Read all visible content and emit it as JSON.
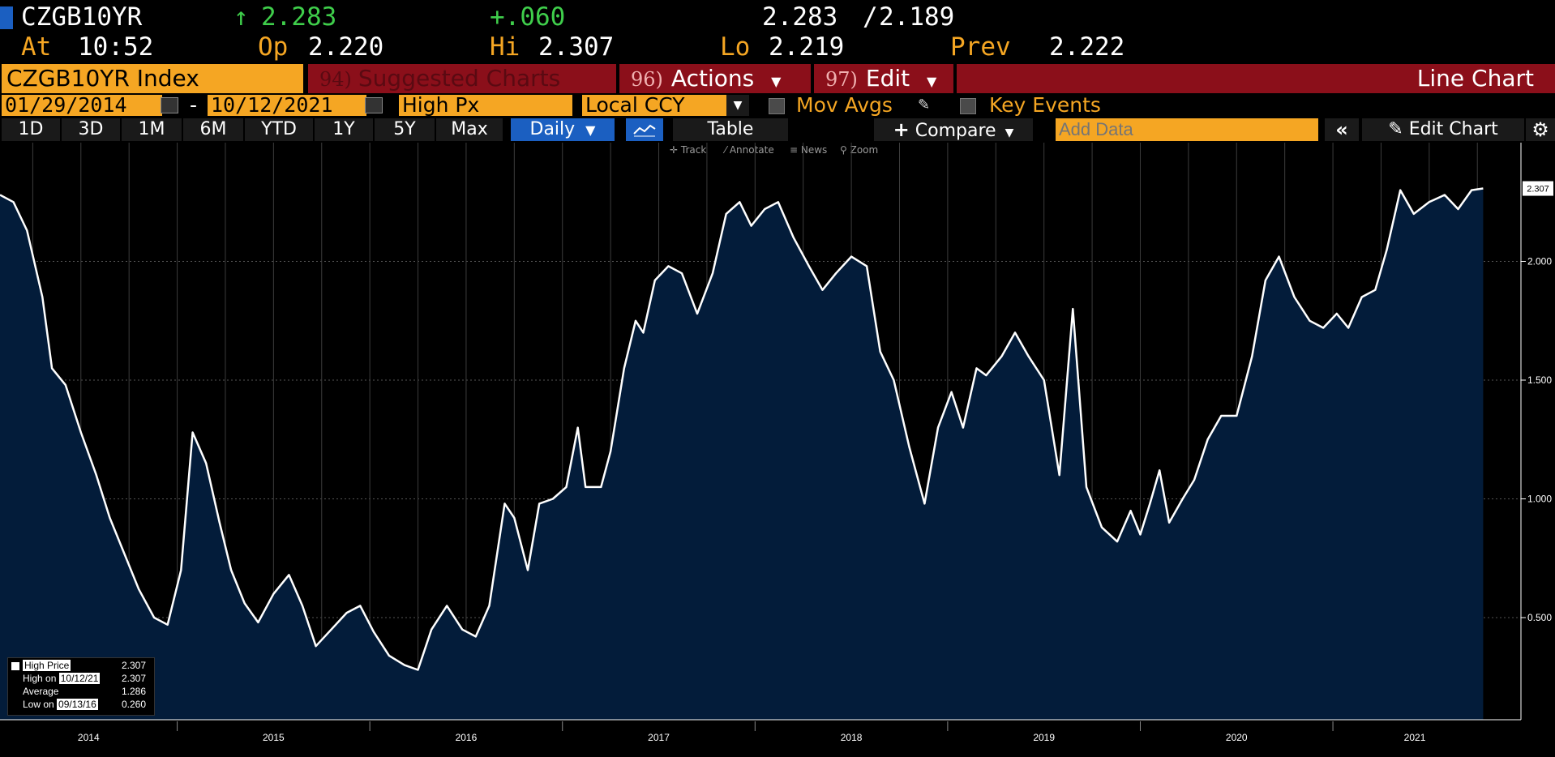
{
  "quote": {
    "ticker": "CZGB10YR",
    "arrow": "↑",
    "last": "2.283",
    "change": "+.060",
    "bid": "2.283",
    "slash": "/",
    "ask": "2.189",
    "at_label": "At",
    "time": "10:52",
    "op_label": "Op",
    "open": "2.220",
    "hi_label": "Hi",
    "high": "2.307",
    "lo_label": "Lo",
    "low": "2.219",
    "prev_label": "Prev",
    "prev": "2.222"
  },
  "toolbar": {
    "security": "CZGB10YR Index",
    "suggested_num": "94)",
    "suggested": "Suggested Charts",
    "actions_num": "96)",
    "actions": "Actions",
    "edit_num": "97)",
    "edit": "Edit",
    "chart_type": "Line Chart",
    "start_date": "01/29/2014",
    "date_sep": "-",
    "end_date": "10/12/2021",
    "field": "High Px",
    "currency": "Local CCY",
    "mov_avgs": "Mov Avgs",
    "key_events": "Key Events",
    "periods": [
      "1D",
      "3D",
      "1M",
      "6M",
      "YTD",
      "1Y",
      "5Y",
      "Max"
    ],
    "frequency": "Daily",
    "table": "Table",
    "compare": "Compare",
    "add_data_placeholder": "Add Data",
    "edit_chart": "Edit Chart",
    "tools": [
      "Track",
      "Annotate",
      "News",
      "Zoom"
    ]
  },
  "legend": {
    "high_price_label": "High Price",
    "high_price_value": "2.307",
    "high_on_label": "High on",
    "high_on_date": "10/12/21",
    "high_on_value": "2.307",
    "average_label": "Average",
    "average_value": "1.286",
    "low_on_label": "Low on",
    "low_on_date": "09/13/16",
    "low_on_value": "0.260"
  },
  "colors": {
    "accent_orange": "#f5a623",
    "up_green": "#3fce4b",
    "toolbar_red": "#8b0f1a",
    "area_fill": "#031c3a",
    "line": "#ffffff",
    "selected_blue": "#1b5fc1"
  },
  "chart_data": {
    "type": "area",
    "title": "",
    "xlabel": "",
    "ylabel": "",
    "series": [
      {
        "name": "High Price",
        "x": [
          2014.08,
          2014.15,
          2014.22,
          2014.3,
          2014.35,
          2014.42,
          2014.5,
          2014.58,
          2014.65,
          2014.72,
          2014.8,
          2014.88,
          2014.95,
          2015.02,
          2015.08,
          2015.15,
          2015.22,
          2015.28,
          2015.35,
          2015.42,
          2015.5,
          2015.58,
          2015.65,
          2015.72,
          2015.8,
          2015.88,
          2015.95,
          2016.02,
          2016.1,
          2016.18,
          2016.25,
          2016.32,
          2016.4,
          2016.48,
          2016.55,
          2016.62,
          2016.7,
          2016.75,
          2016.82,
          2016.88,
          2016.95,
          2017.02,
          2017.08,
          2017.12,
          2017.2,
          2017.25,
          2017.32,
          2017.38,
          2017.42,
          2017.48,
          2017.55,
          2017.62,
          2017.7,
          2017.78,
          2017.85,
          2017.92,
          2017.98,
          2018.05,
          2018.12,
          2018.2,
          2018.28,
          2018.35,
          2018.42,
          2018.5,
          2018.58,
          2018.65,
          2018.72,
          2018.8,
          2018.88,
          2018.95,
          2019.02,
          2019.08,
          2019.15,
          2019.2,
          2019.28,
          2019.35,
          2019.42,
          2019.5,
          2019.58,
          2019.65,
          2019.72,
          2019.8,
          2019.88,
          2019.95,
          2020.0,
          2020.05,
          2020.1,
          2020.15,
          2020.22,
          2020.28,
          2020.35,
          2020.42,
          2020.5,
          2020.58,
          2020.65,
          2020.72,
          2020.8,
          2020.88,
          2020.95,
          2021.02,
          2021.08,
          2021.15,
          2021.22,
          2021.28,
          2021.35,
          2021.42,
          2021.5,
          2021.58,
          2021.65,
          2021.72,
          2021.78
        ],
        "values": [
          2.28,
          2.25,
          2.13,
          1.85,
          1.55,
          1.48,
          1.28,
          1.1,
          0.92,
          0.78,
          0.62,
          0.5,
          0.47,
          0.7,
          1.28,
          1.15,
          0.9,
          0.7,
          0.56,
          0.48,
          0.6,
          0.68,
          0.55,
          0.38,
          0.45,
          0.52,
          0.55,
          0.44,
          0.34,
          0.3,
          0.28,
          0.45,
          0.55,
          0.45,
          0.42,
          0.55,
          0.98,
          0.92,
          0.7,
          0.98,
          1.0,
          1.05,
          1.3,
          1.05,
          1.05,
          1.2,
          1.55,
          1.75,
          1.7,
          1.92,
          1.98,
          1.95,
          1.78,
          1.95,
          2.2,
          2.25,
          2.15,
          2.22,
          2.25,
          2.1,
          1.98,
          1.88,
          1.95,
          2.02,
          1.98,
          1.62,
          1.5,
          1.22,
          0.98,
          1.3,
          1.45,
          1.3,
          1.55,
          1.52,
          1.6,
          1.7,
          1.6,
          1.5,
          1.1,
          1.8,
          1.05,
          0.88,
          0.82,
          0.95,
          0.85,
          0.98,
          1.12,
          0.9,
          1.0,
          1.08,
          1.25,
          1.35,
          1.35,
          1.6,
          1.92,
          2.02,
          1.85,
          1.75,
          1.72,
          1.78,
          1.72,
          1.85,
          1.88,
          2.05,
          2.3,
          2.2,
          2.25,
          2.28,
          2.22,
          2.3,
          2.307
        ]
      }
    ],
    "yticks": [
      "0.500",
      "1.000",
      "1.500",
      "2.000"
    ],
    "ytick_values": [
      0.5,
      1.0,
      1.5,
      2.0
    ],
    "ylim": [
      0.07,
      2.5
    ],
    "xlim": [
      2014.08,
      2021.85
    ],
    "xticks": [
      "2014",
      "2015",
      "2016",
      "2017",
      "2018",
      "2019",
      "2020",
      "2021"
    ],
    "last_value_label": "2.307",
    "grid": true,
    "legend_position": "bottom-left"
  }
}
